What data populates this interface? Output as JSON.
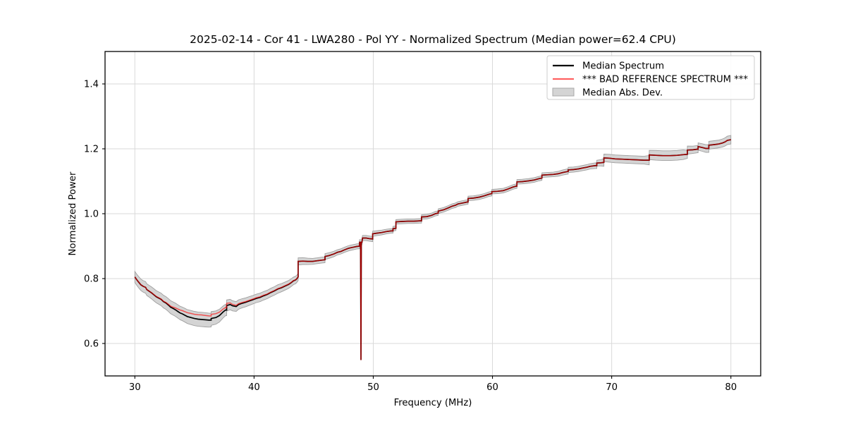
{
  "figure": {
    "background": "#ffffff"
  },
  "chart_data": {
    "type": "line",
    "title": "2025-02-14 - Cor 41 - LWA280 - Pol YY - Normalized Spectrum (Median power=62.4 CPU)",
    "xlabel": "Frequency (MHz)",
    "ylabel": "Normalized Power",
    "xlim": [
      27.5,
      82.5
    ],
    "ylim": [
      0.5,
      1.5
    ],
    "x_ticks": [
      30,
      40,
      50,
      60,
      70,
      80
    ],
    "x_tick_labels": [
      "30",
      "40",
      "50",
      "60",
      "70",
      "80"
    ],
    "y_ticks": [
      0.6,
      0.8,
      1.0,
      1.2,
      1.4
    ],
    "y_tick_labels": [
      "0.6",
      "0.8",
      "1.0",
      "1.2",
      "1.4"
    ],
    "grid": true,
    "grid_color": "#d9d9d9",
    "spine_color": "#000000",
    "legend": {
      "position": "upper right",
      "entries": [
        {
          "label": "Median Spectrum",
          "type": "line",
          "color": "#000000"
        },
        {
          "label": "*** BAD REFERENCE SPECTRUM ***",
          "type": "line",
          "color": "#f87272"
        },
        {
          "label": "Median Abs. Dev.",
          "type": "patch",
          "color": "#d4d4d4"
        }
      ]
    },
    "spike": {
      "freq": 48.97,
      "min_value": 0.55,
      "note": "narrow dropout in both spectra near 49 MHz"
    },
    "series": [
      {
        "name": "Median Spectrum",
        "color": "#000000",
        "points": [
          [
            30.0,
            0.805
          ],
          [
            30.15,
            0.797
          ],
          [
            30.3,
            0.79
          ],
          [
            30.5,
            0.781
          ],
          [
            30.7,
            0.776
          ],
          [
            30.9,
            0.773
          ],
          [
            31.0,
            0.766
          ],
          [
            31.2,
            0.761
          ],
          [
            31.4,
            0.756
          ],
          [
            31.6,
            0.75
          ],
          [
            31.8,
            0.744
          ],
          [
            32.0,
            0.74
          ],
          [
            32.2,
            0.736
          ],
          [
            32.4,
            0.729
          ],
          [
            32.6,
            0.725
          ],
          [
            32.8,
            0.719
          ],
          [
            33.0,
            0.712
          ],
          [
            33.2,
            0.708
          ],
          [
            33.4,
            0.704
          ],
          [
            33.6,
            0.699
          ],
          [
            33.8,
            0.694
          ],
          [
            34.0,
            0.691
          ],
          [
            34.2,
            0.687
          ],
          [
            34.4,
            0.683
          ],
          [
            34.7,
            0.68
          ],
          [
            35.0,
            0.677
          ],
          [
            35.3,
            0.675
          ],
          [
            35.6,
            0.674
          ],
          [
            35.9,
            0.673
          ],
          [
            36.2,
            0.672
          ],
          [
            36.4,
            0.672
          ],
          [
            36.4,
            0.677
          ],
          [
            36.8,
            0.68
          ],
          [
            37.1,
            0.686
          ],
          [
            37.4,
            0.697
          ],
          [
            37.6,
            0.703
          ],
          [
            37.7,
            0.703
          ],
          [
            37.7,
            0.717
          ],
          [
            38.0,
            0.72
          ],
          [
            38.2,
            0.716
          ],
          [
            38.5,
            0.714
          ],
          [
            38.7,
            0.72
          ],
          [
            39.0,
            0.724
          ],
          [
            39.3,
            0.727
          ],
          [
            39.6,
            0.731
          ],
          [
            39.9,
            0.735
          ],
          [
            40.2,
            0.739
          ],
          [
            40.5,
            0.742
          ],
          [
            40.8,
            0.747
          ],
          [
            41.1,
            0.751
          ],
          [
            41.4,
            0.757
          ],
          [
            41.7,
            0.762
          ],
          [
            42.0,
            0.768
          ],
          [
            42.3,
            0.772
          ],
          [
            42.6,
            0.777
          ],
          [
            42.9,
            0.782
          ],
          [
            43.1,
            0.787
          ],
          [
            43.3,
            0.793
          ],
          [
            43.5,
            0.796
          ],
          [
            43.6,
            0.8
          ],
          [
            43.7,
            0.805
          ],
          [
            43.7,
            0.853
          ],
          [
            44.1,
            0.854
          ],
          [
            44.5,
            0.853
          ],
          [
            44.9,
            0.853
          ],
          [
            45.3,
            0.855
          ],
          [
            45.7,
            0.857
          ],
          [
            45.95,
            0.858
          ],
          [
            45.95,
            0.868
          ],
          [
            46.3,
            0.871
          ],
          [
            46.7,
            0.876
          ],
          [
            47.0,
            0.881
          ],
          [
            47.3,
            0.884
          ],
          [
            47.6,
            0.889
          ],
          [
            47.9,
            0.893
          ],
          [
            48.1,
            0.895
          ],
          [
            48.35,
            0.897
          ],
          [
            48.6,
            0.899
          ],
          [
            48.85,
            0.9
          ],
          [
            48.85,
            0.912
          ],
          [
            48.93,
            0.912
          ],
          [
            48.97,
            0.549,
            "spike"
          ],
          [
            49.0,
            0.912
          ],
          [
            49.05,
            0.912
          ],
          [
            49.1,
            0.925
          ],
          [
            49.4,
            0.925
          ],
          [
            49.7,
            0.923
          ],
          [
            49.95,
            0.922
          ],
          [
            49.95,
            0.938
          ],
          [
            50.3,
            0.94
          ],
          [
            50.7,
            0.942
          ],
          [
            51.1,
            0.945
          ],
          [
            51.5,
            0.947
          ],
          [
            51.65,
            0.947
          ],
          [
            51.65,
            0.954
          ],
          [
            51.9,
            0.955
          ],
          [
            51.9,
            0.975
          ],
          [
            52.4,
            0.976
          ],
          [
            52.9,
            0.977
          ],
          [
            53.4,
            0.977
          ],
          [
            53.9,
            0.978
          ],
          [
            54.05,
            0.978
          ],
          [
            54.05,
            0.99
          ],
          [
            54.5,
            0.991
          ],
          [
            54.9,
            0.995
          ],
          [
            55.2,
            1.0
          ],
          [
            55.45,
            1.002
          ],
          [
            55.45,
            1.008
          ],
          [
            55.9,
            1.012
          ],
          [
            56.3,
            1.018
          ],
          [
            56.6,
            1.023
          ],
          [
            56.9,
            1.026
          ],
          [
            57.1,
            1.03
          ],
          [
            57.5,
            1.033
          ],
          [
            57.9,
            1.036
          ],
          [
            57.95,
            1.036
          ],
          [
            57.95,
            1.047
          ],
          [
            58.4,
            1.048
          ],
          [
            58.9,
            1.051
          ],
          [
            59.3,
            1.055
          ],
          [
            59.7,
            1.06
          ],
          [
            59.95,
            1.062
          ],
          [
            59.95,
            1.068
          ],
          [
            60.4,
            1.069
          ],
          [
            60.9,
            1.071
          ],
          [
            61.3,
            1.076
          ],
          [
            61.7,
            1.082
          ],
          [
            62.0,
            1.085
          ],
          [
            62.05,
            1.085
          ],
          [
            62.05,
            1.098
          ],
          [
            62.5,
            1.099
          ],
          [
            63.0,
            1.101
          ],
          [
            63.5,
            1.104
          ],
          [
            63.9,
            1.108
          ],
          [
            64.15,
            1.11
          ],
          [
            64.15,
            1.119
          ],
          [
            64.6,
            1.12
          ],
          [
            65.1,
            1.121
          ],
          [
            65.5,
            1.123
          ],
          [
            65.9,
            1.127
          ],
          [
            66.3,
            1.13
          ],
          [
            66.35,
            1.13
          ],
          [
            66.35,
            1.135
          ],
          [
            66.8,
            1.136
          ],
          [
            67.2,
            1.138
          ],
          [
            67.6,
            1.141
          ],
          [
            67.9,
            1.143
          ],
          [
            68.2,
            1.146
          ],
          [
            68.6,
            1.148
          ],
          [
            68.75,
            1.148
          ],
          [
            68.75,
            1.156
          ],
          [
            69.1,
            1.157
          ],
          [
            69.35,
            1.158
          ],
          [
            69.35,
            1.172
          ],
          [
            69.8,
            1.171
          ],
          [
            70.3,
            1.169
          ],
          [
            70.9,
            1.168
          ],
          [
            71.5,
            1.167
          ],
          [
            72.1,
            1.166
          ],
          [
            72.7,
            1.165
          ],
          [
            73.15,
            1.165
          ],
          [
            73.15,
            1.181
          ],
          [
            73.7,
            1.18
          ],
          [
            74.3,
            1.179
          ],
          [
            74.9,
            1.179
          ],
          [
            75.5,
            1.18
          ],
          [
            76.0,
            1.182
          ],
          [
            76.35,
            1.183
          ],
          [
            76.35,
            1.196
          ],
          [
            76.8,
            1.197
          ],
          [
            77.2,
            1.199
          ],
          [
            77.25,
            1.199
          ],
          [
            77.25,
            1.207
          ],
          [
            77.6,
            1.204
          ],
          [
            77.9,
            1.201
          ],
          [
            78.15,
            1.201
          ],
          [
            78.15,
            1.211
          ],
          [
            78.6,
            1.213
          ],
          [
            79.0,
            1.215
          ],
          [
            79.3,
            1.218
          ],
          [
            79.5,
            1.221
          ],
          [
            79.7,
            1.226
          ],
          [
            80.0,
            1.228
          ]
        ]
      },
      {
        "name": "*** BAD REFERENCE SPECTRUM ***",
        "color": "#ff0000",
        "opacity": 0.62,
        "delta_from_median": [
          [
            30.0,
            0.0
          ],
          [
            32.5,
            0.001
          ],
          [
            33.2,
            0.004
          ],
          [
            33.8,
            0.009
          ],
          [
            34.4,
            0.012
          ],
          [
            35.0,
            0.013
          ],
          [
            35.6,
            0.014
          ],
          [
            36.2,
            0.013
          ],
          [
            36.8,
            0.012
          ],
          [
            37.4,
            0.009
          ],
          [
            38.0,
            0.005
          ],
          [
            38.6,
            0.003
          ],
          [
            39.4,
            0.002
          ],
          [
            40.5,
            0.002
          ],
          [
            41.5,
            0.001
          ],
          [
            43.0,
            0.001
          ],
          [
            44.0,
            0.0
          ],
          [
            80.0,
            0.0
          ]
        ]
      },
      {
        "name": "Median Abs. Dev.",
        "fill": "#d4d4d4",
        "edge": "#9f9f9f",
        "halfwidth": [
          [
            30,
            0.017
          ],
          [
            31,
            0.018
          ],
          [
            32,
            0.019
          ],
          [
            33,
            0.02
          ],
          [
            34,
            0.021
          ],
          [
            35,
            0.022
          ],
          [
            36,
            0.022
          ],
          [
            37,
            0.02
          ],
          [
            38,
            0.016
          ],
          [
            39,
            0.014
          ],
          [
            40,
            0.013
          ],
          [
            41,
            0.013
          ],
          [
            42,
            0.013
          ],
          [
            43,
            0.012
          ],
          [
            43.8,
            0.011
          ],
          [
            45,
            0.009
          ],
          [
            46,
            0.009
          ],
          [
            47,
            0.008
          ],
          [
            48,
            0.008
          ],
          [
            49,
            0.008
          ],
          [
            50,
            0.008
          ],
          [
            51,
            0.007
          ],
          [
            52,
            0.007
          ],
          [
            53,
            0.007
          ],
          [
            54,
            0.007
          ],
          [
            55,
            0.007
          ],
          [
            56,
            0.007
          ],
          [
            57,
            0.007
          ],
          [
            58,
            0.007
          ],
          [
            59,
            0.007
          ],
          [
            60,
            0.007
          ],
          [
            61,
            0.007
          ],
          [
            62,
            0.007
          ],
          [
            63,
            0.007
          ],
          [
            64,
            0.007
          ],
          [
            65,
            0.007
          ],
          [
            66,
            0.008
          ],
          [
            67,
            0.008
          ],
          [
            68,
            0.008
          ],
          [
            69,
            0.009
          ],
          [
            69.4,
            0.012
          ],
          [
            70,
            0.012
          ],
          [
            71,
            0.012
          ],
          [
            72,
            0.012
          ],
          [
            73,
            0.012
          ],
          [
            73.2,
            0.015
          ],
          [
            74,
            0.015
          ],
          [
            75,
            0.015
          ],
          [
            76,
            0.015
          ],
          [
            76.4,
            0.012
          ],
          [
            77,
            0.011
          ],
          [
            78,
            0.012
          ],
          [
            79,
            0.012
          ],
          [
            79.8,
            0.013
          ],
          [
            80,
            0.013
          ]
        ]
      }
    ]
  }
}
